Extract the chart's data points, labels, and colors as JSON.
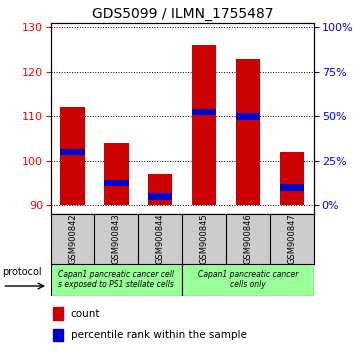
{
  "title": "GDS5099 / ILMN_1755487",
  "samples": [
    "GSM900842",
    "GSM900843",
    "GSM900844",
    "GSM900845",
    "GSM900846",
    "GSM900847"
  ],
  "bar_bottoms": [
    90,
    90,
    90,
    90,
    90,
    90
  ],
  "bar_tops": [
    112,
    104,
    97,
    126,
    123,
    102
  ],
  "percentile_values": [
    102,
    95,
    92,
    111,
    110,
    94
  ],
  "ylim": [
    88,
    131
  ],
  "yticks_left": [
    90,
    100,
    110,
    120,
    130
  ],
  "right_ticks_pos": [
    90,
    100,
    110,
    120,
    130
  ],
  "right_ticks_labels": [
    "0%",
    "25%",
    "50%",
    "75%",
    "100%"
  ],
  "bar_color": "#cc0000",
  "percentile_color": "#0000cc",
  "title_fontsize": 10,
  "tick_fontsize": 8,
  "label_fontsize": 6.5,
  "group1_label": "Capan1 pancreatic cancer cell\ns exposed to PS1 stellate cells",
  "group2_label": "Capan1 pancreatic cancer\ncells only",
  "protocol_label": "protocol",
  "legend_count_label": "count",
  "legend_percentile_label": "percentile rank within the sample",
  "group_color": "#99ff99",
  "sample_box_color": "#cccccc"
}
